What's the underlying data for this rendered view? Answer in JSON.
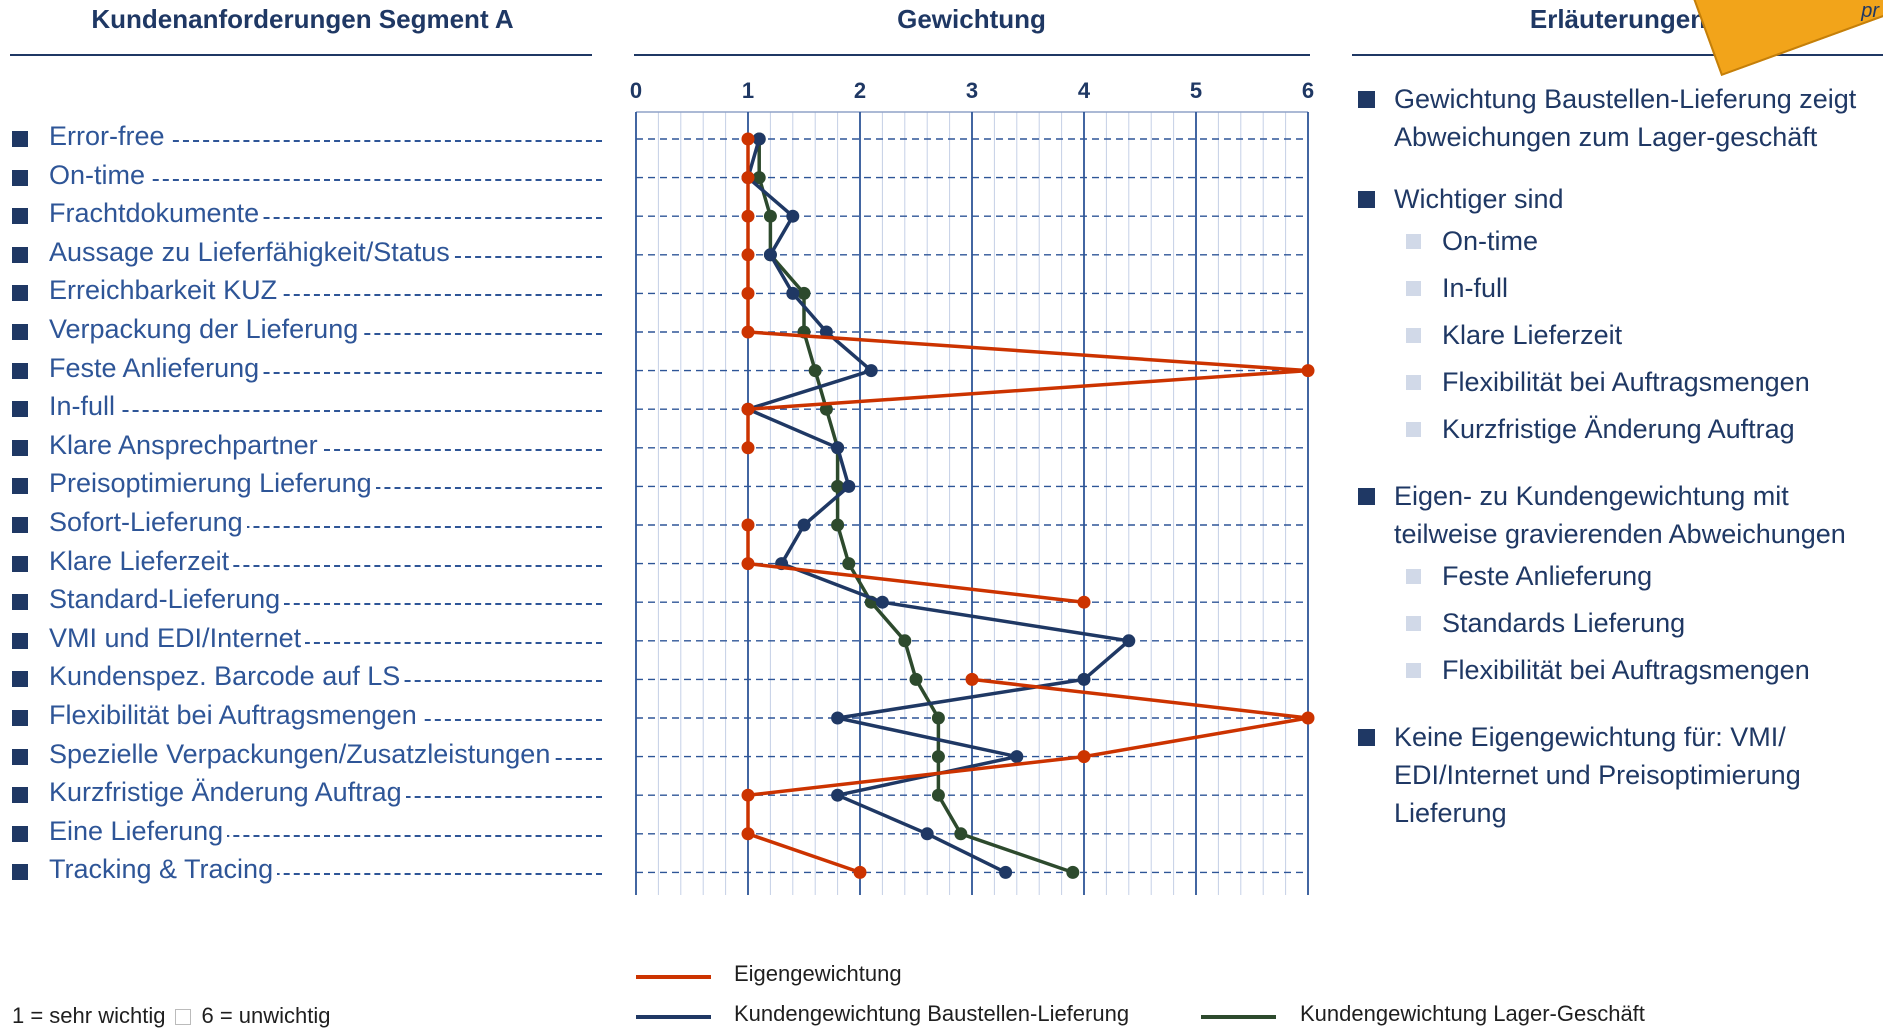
{
  "headers": {
    "left": "Kundenanforderungen Segment A",
    "middle": "Gewichtung",
    "right": "Erläuterungen"
  },
  "corner_text": "pr",
  "requirements": [
    "Error-free",
    "On-time",
    "Frachtdokumente",
    "Aussage zu Lieferfähigkeit/Status",
    "Erreichbarkeit KUZ",
    "Verpackung der Lieferung",
    "Feste Anlieferung",
    "In-full",
    "Klare Ansprechpartner",
    "Preisoptimierung Lieferung",
    "Sofort-Lieferung",
    "Klare Lieferzeit",
    "Standard-Lieferung",
    "VMI und EDI/Internet",
    "Kundenspez. Barcode auf LS",
    "Flexibilität bei Auftragsmengen",
    "Spezielle Verpackungen/Zusatzleistungen",
    "Kurzfristige Änderung Auftrag",
    "Eine Lieferung",
    "Tracking & Tracing"
  ],
  "chart_data": {
    "type": "line",
    "orientation": "horizontal",
    "title": "Gewichtung",
    "categories": [
      "Error-free",
      "On-time",
      "Frachtdokumente",
      "Aussage zu Lieferfähigkeit/Status",
      "Erreichbarkeit KUZ",
      "Verpackung der Lieferung",
      "Feste Anlieferung",
      "In-full",
      "Klare Ansprechpartner",
      "Preisoptimierung Lieferung",
      "Sofort-Lieferung",
      "Klare Lieferzeit",
      "Standard-Lieferung",
      "VMI und EDI/Internet",
      "Kundenspez. Barcode auf LS",
      "Flexibilität bei Auftragsmengen",
      "Spezielle Verpackungen/Zusatzleistungen",
      "Kurzfristige Änderung Auftrag",
      "Eine Lieferung",
      "Tracking & Tracing"
    ],
    "xlim": [
      0,
      6
    ],
    "xticks": [
      "0",
      "1",
      "2",
      "3",
      "4",
      "5",
      "6"
    ],
    "grid": true,
    "legend_position": "bottom",
    "series": [
      {
        "name": "Eigengewichtung",
        "color": "#cc3300",
        "values": [
          1,
          1,
          1,
          1,
          1,
          1,
          6,
          1,
          1,
          null,
          1,
          1,
          4,
          null,
          3,
          6,
          4,
          1,
          1,
          2
        ]
      },
      {
        "name": "Kundengewichtung Baustellen-Lieferung",
        "color": "#1f3864",
        "values": [
          1.1,
          1.0,
          1.4,
          1.2,
          1.4,
          1.7,
          2.1,
          1.0,
          1.8,
          1.9,
          1.5,
          1.3,
          2.2,
          4.4,
          4.0,
          1.8,
          3.4,
          1.8,
          2.6,
          3.3
        ]
      },
      {
        "name": "Kundengewichtung Lager-Geschäft",
        "color": "#2d4a2d",
        "values": [
          1.1,
          1.1,
          1.2,
          1.2,
          1.5,
          1.5,
          1.6,
          1.7,
          1.8,
          1.8,
          1.8,
          1.9,
          2.1,
          2.4,
          2.5,
          2.7,
          2.7,
          2.7,
          2.9,
          3.9
        ]
      }
    ]
  },
  "notes": [
    {
      "text": "Gewichtung Baustellen-Lieferung zeigt Abweichungen zum Lager-geschäft",
      "subs": []
    },
    {
      "text": "Wichtiger sind",
      "subs": [
        "On-time",
        "In-full",
        "Klare Lieferzeit",
        "Flexibilität bei Auftragsmengen",
        "Kurzfristige Änderung Auftrag"
      ]
    },
    {
      "text": "Eigen- zu Kundengewichtung mit teilweise gravierenden Abweichungen",
      "subs": [
        "Feste Anlieferung",
        "Standards Lieferung",
        "Flexibilität bei Auftragsmengen"
      ]
    },
    {
      "text": "Keine Eigengewichtung für:  VMI/ EDI/Internet und Preisoptimierung Lieferung",
      "subs": []
    }
  ],
  "footer": {
    "scale_left": "1 = sehr wichtig",
    "scale_right": "6 = unwichtig"
  }
}
